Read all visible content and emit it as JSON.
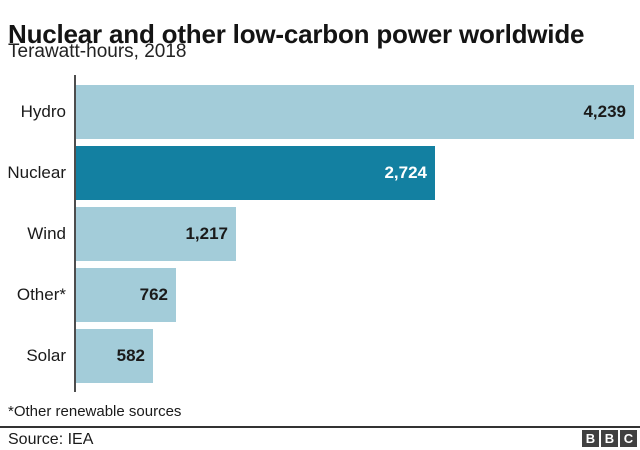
{
  "header": {
    "title": "Nuclear and other low-carbon power worldwide",
    "subtitle": "Terawatt-hours, 2018"
  },
  "chart_data": {
    "type": "bar",
    "orientation": "horizontal",
    "title": "Nuclear and other low-carbon power worldwide",
    "subtitle": "Terawatt-hours, 2018",
    "unit": "Terawatt-hours",
    "year": "2018",
    "categories": [
      "Hydro",
      "Nuclear",
      "Wind",
      "Other*",
      "Solar"
    ],
    "values": [
      4239,
      2724,
      1217,
      762,
      582
    ],
    "value_labels": [
      "4,239",
      "2,724",
      "1,217",
      "762",
      "582"
    ],
    "xlim": [
      0,
      4239
    ],
    "grid": false,
    "legend": "none",
    "highlight_category": "Nuclear",
    "highlight_index": 1,
    "colors": {
      "bar": "#a3ccd9",
      "highlight_bar": "#1380a1",
      "value_label": "#1a1a1a",
      "highlight_value_label": "#ffffff",
      "axis_line": "#4d4d4d"
    }
  },
  "footer": {
    "footnote": "*Other renewable sources",
    "source": "Source: IEA",
    "logo_letters": [
      "B",
      "B",
      "C"
    ],
    "logo_box_color": "#404040"
  }
}
